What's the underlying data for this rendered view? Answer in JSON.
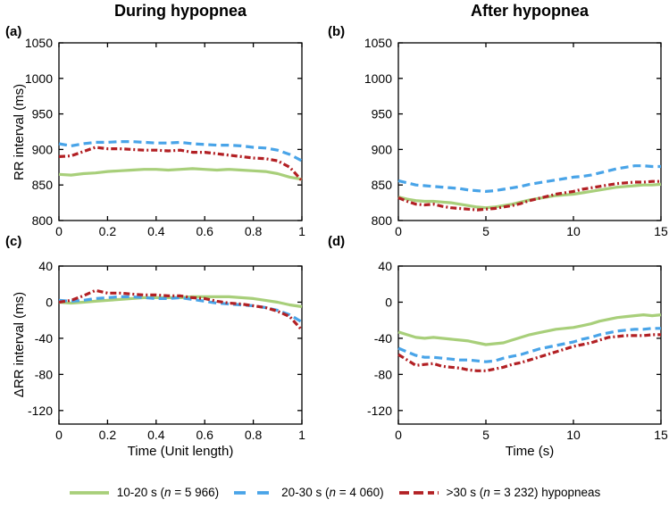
{
  "figure_caption": {
    "panel_letters": [
      "(a)",
      "(b)",
      "(c)",
      "(d)"
    ]
  },
  "legend": {
    "position": "bottom",
    "items": [
      {
        "key": "green",
        "pre": "10-20 s (",
        "n": "n",
        "post": " = 5 966)",
        "color": "#a8cf7a",
        "style": "solid"
      },
      {
        "key": "blue",
        "pre": "20-30 s (",
        "n": "n",
        "post": " = 4 060)",
        "color": "#49a4e8",
        "style": "dashed"
      },
      {
        "key": "red",
        "pre": ">30 s (",
        "n": "n",
        "post": " = 3 232) hypopneas",
        "color": "#b22024",
        "style": "dash-dot"
      }
    ]
  },
  "chart_data": [
    {
      "panel": "a",
      "panel_label": "(a)",
      "type": "line",
      "grid": false,
      "title": "During hypopnea",
      "ylabel": "RR interval (ms)",
      "xlabel": "",
      "xlim": [
        0,
        1
      ],
      "ylim": [
        800,
        1050
      ],
      "xticks": [
        0,
        0.2,
        0.4,
        0.6,
        0.8,
        1
      ],
      "xtick_labels": [
        "0",
        "0.2",
        "0.4",
        "0.6",
        "0.8",
        "1"
      ],
      "yticks": [
        800,
        850,
        900,
        950,
        1000,
        1050
      ],
      "ytick_labels": [
        "800",
        "850",
        "900",
        "950",
        "1000",
        "1050"
      ],
      "x": [
        0,
        0.05,
        0.1,
        0.15,
        0.2,
        0.25,
        0.3,
        0.35,
        0.4,
        0.45,
        0.5,
        0.55,
        0.6,
        0.65,
        0.7,
        0.75,
        0.8,
        0.85,
        0.9,
        0.95,
        1
      ],
      "series": [
        {
          "name": "10-20 s",
          "values": [
            865,
            864,
            866,
            867,
            869,
            870,
            871,
            872,
            872,
            871,
            872,
            873,
            872,
            871,
            872,
            871,
            870,
            869,
            866,
            861,
            858
          ]
        },
        {
          "name": "20-30 s",
          "values": [
            908,
            905,
            908,
            910,
            910,
            911,
            911,
            910,
            909,
            909,
            910,
            908,
            907,
            906,
            906,
            905,
            903,
            902,
            899,
            893,
            884
          ]
        },
        {
          "name": ">30 s",
          "values": [
            890,
            891,
            897,
            903,
            901,
            901,
            900,
            899,
            899,
            898,
            899,
            896,
            896,
            894,
            892,
            890,
            888,
            887,
            884,
            875,
            856
          ]
        }
      ]
    },
    {
      "panel": "b",
      "panel_label": "(b)",
      "type": "line",
      "grid": false,
      "title": "After hypopnea",
      "ylabel": "",
      "xlabel": "",
      "xlim": [
        0,
        15
      ],
      "ylim": [
        800,
        1050
      ],
      "xticks": [
        0,
        5,
        10,
        15
      ],
      "xtick_labels": [
        "0",
        "5",
        "10",
        "15"
      ],
      "yticks": [
        800,
        850,
        900,
        950,
        1000,
        1050
      ],
      "ytick_labels": [
        "800",
        "850",
        "900",
        "950",
        "1000",
        "1050"
      ],
      "x": [
        0,
        0.5,
        1,
        1.5,
        2,
        2.5,
        3,
        3.5,
        4,
        4.5,
        5,
        5.5,
        6,
        6.5,
        7,
        7.5,
        8,
        8.5,
        9,
        9.5,
        10,
        10.5,
        11,
        11.5,
        12,
        12.5,
        13,
        13.5,
        14,
        14.5,
        15
      ],
      "series": [
        {
          "name": "10-20 s",
          "values": [
            833,
            830,
            828,
            827,
            827,
            826,
            825,
            823,
            821,
            819,
            818,
            819,
            821,
            823,
            826,
            829,
            831,
            833,
            835,
            836,
            837,
            839,
            841,
            843,
            845,
            847,
            848,
            849,
            850,
            850,
            851
          ]
        },
        {
          "name": "20-30 s",
          "values": [
            856,
            853,
            850,
            849,
            848,
            847,
            846,
            845,
            843,
            842,
            841,
            842,
            844,
            846,
            848,
            851,
            853,
            855,
            857,
            859,
            861,
            862,
            864,
            867,
            870,
            873,
            875,
            877,
            877,
            876,
            876
          ]
        },
        {
          "name": ">30 s",
          "values": [
            832,
            827,
            823,
            822,
            823,
            820,
            818,
            817,
            816,
            815,
            816,
            817,
            819,
            821,
            824,
            828,
            831,
            834,
            837,
            839,
            841,
            844,
            846,
            848,
            850,
            852,
            853,
            854,
            854,
            855,
            855
          ]
        }
      ]
    },
    {
      "panel": "c",
      "panel_label": "(c)",
      "type": "line",
      "grid": false,
      "title": "",
      "ylabel": "ΔRR interval (ms)",
      "xlabel": "Time (Unit length)",
      "xlim": [
        0,
        1
      ],
      "ylim": [
        -135,
        40
      ],
      "xticks": [
        0,
        0.2,
        0.4,
        0.6,
        0.8,
        1
      ],
      "xtick_labels": [
        "0",
        "0.2",
        "0.4",
        "0.6",
        "0.8",
        "1"
      ],
      "yticks": [
        -120,
        -80,
        -40,
        0,
        40
      ],
      "ytick_labels": [
        "-120",
        "-80",
        "-40",
        "0",
        "40"
      ],
      "x": [
        0,
        0.05,
        0.1,
        0.15,
        0.2,
        0.25,
        0.3,
        0.35,
        0.4,
        0.45,
        0.5,
        0.55,
        0.6,
        0.65,
        0.7,
        0.75,
        0.8,
        0.85,
        0.9,
        0.95,
        1
      ],
      "series": [
        {
          "name": "10-20 s",
          "values": [
            0,
            -1,
            0,
            1,
            2,
            3,
            4,
            5,
            5,
            5,
            5,
            6,
            6,
            6,
            6,
            5,
            4,
            2,
            0,
            -3,
            -5
          ]
        },
        {
          "name": "20-30 s",
          "values": [
            2,
            1,
            2,
            4,
            5,
            6,
            6,
            5,
            4,
            4,
            5,
            3,
            1,
            -1,
            -2,
            -3,
            -4,
            -6,
            -9,
            -14,
            -22
          ]
        },
        {
          "name": ">30 s",
          "values": [
            0,
            2,
            7,
            13,
            10,
            10,
            9,
            8,
            8,
            7,
            7,
            5,
            4,
            1,
            -1,
            -2,
            -4,
            -6,
            -10,
            -16,
            -31
          ]
        }
      ]
    },
    {
      "panel": "d",
      "panel_label": "(d)",
      "type": "line",
      "grid": false,
      "title": "",
      "ylabel": "",
      "xlabel": "Time (s)",
      "xlim": [
        0,
        15
      ],
      "ylim": [
        -135,
        40
      ],
      "xticks": [
        0,
        5,
        10,
        15
      ],
      "xtick_labels": [
        "0",
        "5",
        "10",
        "15"
      ],
      "yticks": [
        -120,
        -80,
        -40,
        0,
        40
      ],
      "ytick_labels": [
        "-120",
        "-80",
        "-40",
        "0",
        "40"
      ],
      "x": [
        0,
        0.5,
        1,
        1.5,
        2,
        2.5,
        3,
        3.5,
        4,
        4.5,
        5,
        5.5,
        6,
        6.5,
        7,
        7.5,
        8,
        8.5,
        9,
        9.5,
        10,
        10.5,
        11,
        11.5,
        12,
        12.5,
        13,
        13.5,
        14,
        14.5,
        15
      ],
      "series": [
        {
          "name": "10-20 s",
          "values": [
            -33,
            -36,
            -39,
            -40,
            -39,
            -40,
            -41,
            -42,
            -43,
            -45,
            -47,
            -46,
            -45,
            -42,
            -39,
            -36,
            -34,
            -32,
            -30,
            -29,
            -28,
            -26,
            -24,
            -21,
            -19,
            -17,
            -16,
            -15,
            -14,
            -15,
            -14
          ]
        },
        {
          "name": "20-30 s",
          "values": [
            -51,
            -55,
            -59,
            -61,
            -61,
            -62,
            -63,
            -64,
            -64,
            -65,
            -66,
            -65,
            -62,
            -60,
            -58,
            -55,
            -52,
            -50,
            -48,
            -46,
            -44,
            -41,
            -39,
            -36,
            -34,
            -32,
            -31,
            -30,
            -30,
            -29,
            -29
          ]
        },
        {
          "name": ">30 s",
          "values": [
            -58,
            -64,
            -70,
            -69,
            -68,
            -71,
            -72,
            -73,
            -75,
            -76,
            -76,
            -74,
            -72,
            -69,
            -67,
            -64,
            -61,
            -58,
            -55,
            -52,
            -49,
            -47,
            -45,
            -42,
            -39,
            -38,
            -37,
            -37,
            -37,
            -36,
            -36
          ]
        }
      ]
    }
  ]
}
